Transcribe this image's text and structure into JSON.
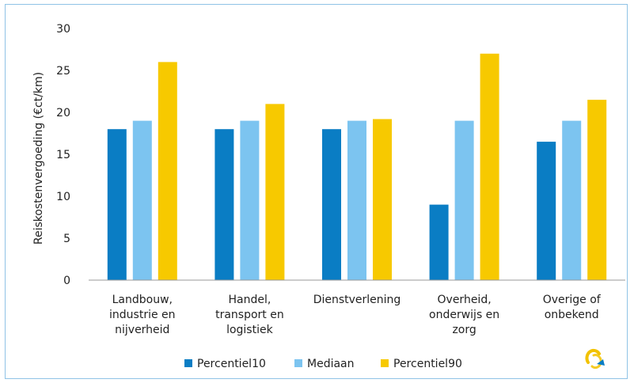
{
  "chart_data": {
    "type": "bar",
    "title": "",
    "xlabel": "",
    "ylabel": "Reiskostenvergoeding (€ct/km)",
    "ylim": [
      0,
      30
    ],
    "yticks": [
      0,
      5,
      10,
      15,
      20,
      25,
      30
    ],
    "grid": false,
    "legend_position": "bottom",
    "categories": [
      [
        "Landbouw,",
        "industrie en",
        "nijverheid"
      ],
      [
        "Handel,",
        "transport en",
        "logistiek"
      ],
      [
        "Dienstverlening"
      ],
      [
        "Overheid,",
        "onderwijs en",
        "zorg"
      ],
      [
        "Overige of",
        "onbekend"
      ]
    ],
    "series": [
      {
        "name": "Percentiel10",
        "color": "#0a7dc4",
        "values": [
          18,
          18,
          18,
          9,
          16.5
        ]
      },
      {
        "name": "Mediaan",
        "color": "#7cc4f0",
        "values": [
          19,
          19,
          19,
          19,
          19
        ]
      },
      {
        "name": "Percentiel90",
        "color": "#f7c900",
        "values": [
          26,
          21,
          19.2,
          27,
          21.5
        ]
      }
    ],
    "logo_icon": "ring-logo-icon"
  }
}
